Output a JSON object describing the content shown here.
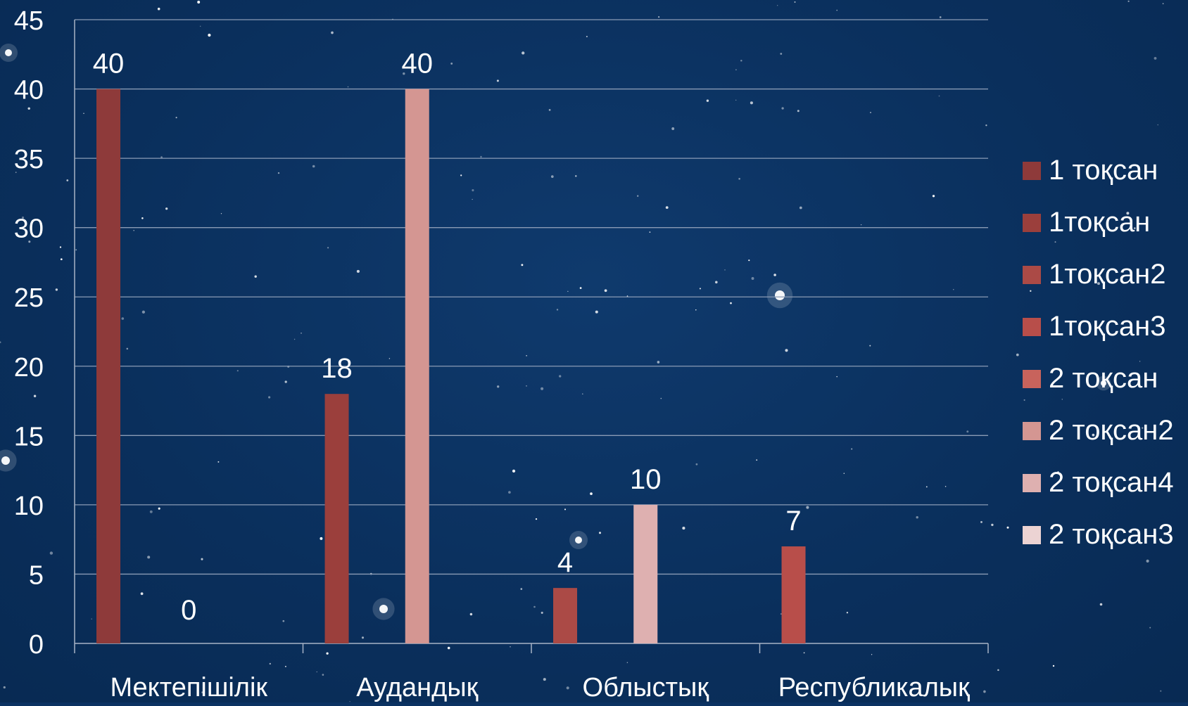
{
  "chart_data": {
    "type": "bar",
    "title": "",
    "xlabel": "",
    "ylabel": "",
    "ylim": [
      0,
      45
    ],
    "yticks": [
      0,
      5,
      10,
      15,
      20,
      25,
      30,
      35,
      40,
      45
    ],
    "grid": true,
    "legend_position": "right",
    "categories": [
      "Мектепішілік",
      "Аудандық",
      "Облыстық",
      "Республикалық"
    ],
    "series": [
      {
        "name": "1 тоқсан",
        "color": "#8e3a3a",
        "values": [
          40,
          null,
          null,
          null
        ]
      },
      {
        "name": "1тоқсан",
        "color": "#9b3f3c",
        "values": [
          0,
          18,
          null,
          null
        ]
      },
      {
        "name": "1тоқсан2",
        "color": "#ab4a46",
        "values": [
          null,
          null,
          4,
          null
        ]
      },
      {
        "name": "1тоқсан3",
        "color": "#b84e4a",
        "values": [
          null,
          null,
          null,
          7
        ]
      },
      {
        "name": "2 тоқсан",
        "color": "#c8635c",
        "values": [
          null,
          null,
          null,
          null
        ]
      },
      {
        "name": "2 тоқсан2",
        "color": "#d49692",
        "values": [
          null,
          40,
          null,
          null
        ]
      },
      {
        "name": "2 тоқсан4",
        "color": "#deb0b0",
        "values": [
          null,
          null,
          10,
          null
        ]
      },
      {
        "name": "2 тоқсан3",
        "color": "#ecd3d3",
        "values": [
          null,
          null,
          null,
          null
        ]
      }
    ],
    "data_labels": [
      {
        "category": "Мектепішілік",
        "series": "1 тоқсан",
        "value": 40,
        "label": "40"
      },
      {
        "category": "Мектепішілік",
        "series": "1тоқсан",
        "value": 0,
        "label": "0"
      },
      {
        "category": "Аудандық",
        "series": "1тоқсан",
        "value": 18,
        "label": "18"
      },
      {
        "category": "Аудандық",
        "series": "2 тоқсан2",
        "value": 40,
        "label": "40"
      },
      {
        "category": "Облыстық",
        "series": "1тоқсан2",
        "value": 4,
        "label": "4"
      },
      {
        "category": "Облыстық",
        "series": "2 тоқсан4",
        "value": 10,
        "label": "10"
      },
      {
        "category": "Республикалық",
        "series": "1тоқсан3",
        "value": 7,
        "label": "7"
      }
    ]
  }
}
